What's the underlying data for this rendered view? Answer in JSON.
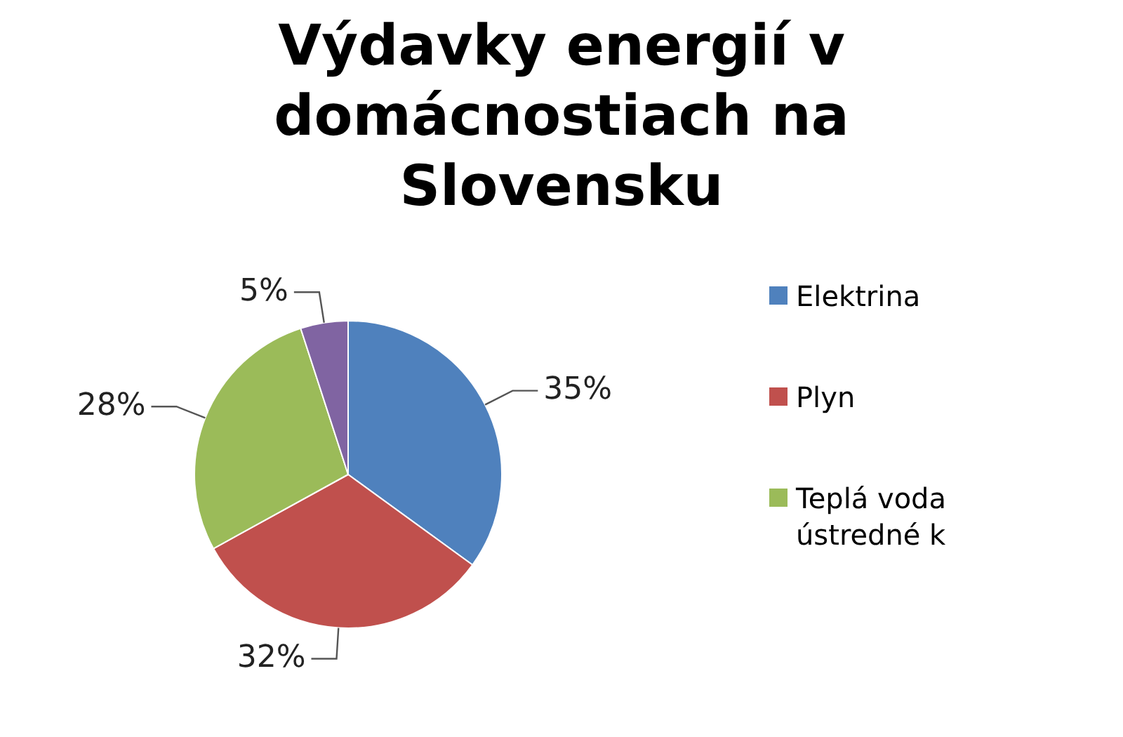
{
  "chart_data": {
    "type": "pie",
    "title": "Výdavky energií v domácnostiach na Slovensku",
    "categories": [
      "Elektrina",
      "Plyn",
      "Teplá voda\nústredné k",
      null
    ],
    "values": [
      35,
      32,
      28,
      5
    ],
    "colors": [
      "#4f81bd",
      "#c0504d",
      "#9bbb59",
      "#8064a2"
    ],
    "value_labels": [
      "35%",
      "32%",
      "28%",
      "5%"
    ],
    "legend": "right"
  }
}
